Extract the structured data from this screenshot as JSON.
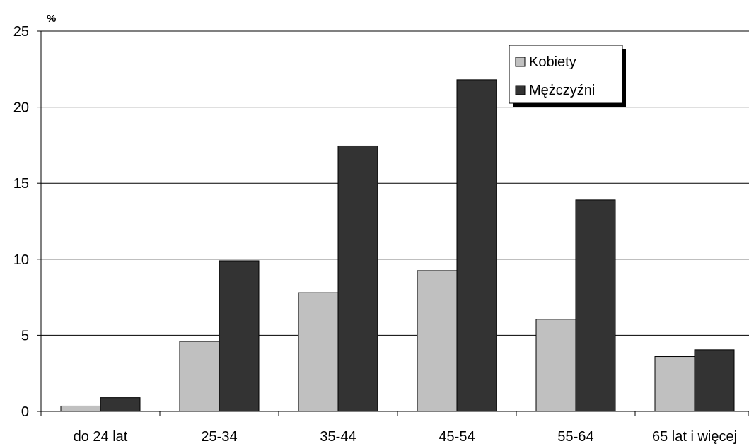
{
  "chart_data": {
    "type": "bar",
    "title": "",
    "xlabel": "",
    "ylabel": "%",
    "ylim": [
      0,
      25
    ],
    "yticks": [
      0,
      5,
      10,
      15,
      20,
      25
    ],
    "grid": true,
    "legend_position": "top-right",
    "categories": [
      "do 24 lat",
      "25-34",
      "35-44",
      "45-54",
      "55-64",
      "65 lat i więcej"
    ],
    "series": [
      {
        "name": "Kobiety",
        "color": "#c0c0c0",
        "values": [
          0.35,
          4.6,
          7.8,
          9.25,
          6.05,
          3.6
        ]
      },
      {
        "name": "Mężczyźni",
        "color": "#333333",
        "values": [
          0.9,
          9.9,
          17.45,
          21.8,
          13.9,
          4.05
        ]
      }
    ]
  }
}
